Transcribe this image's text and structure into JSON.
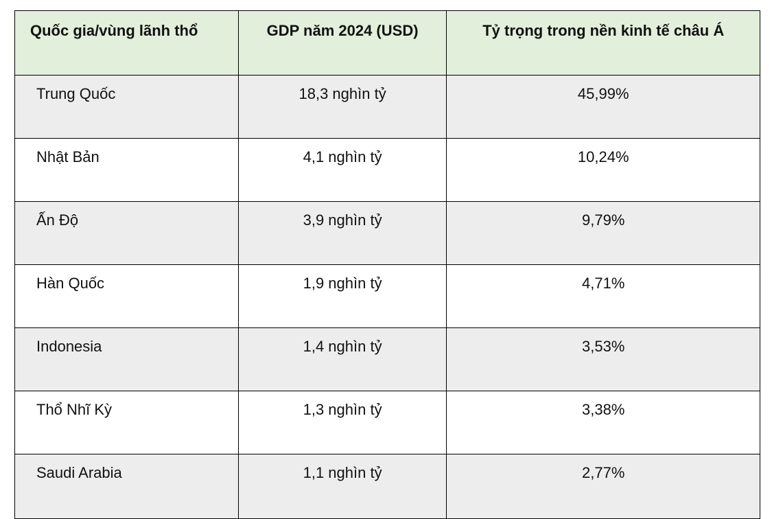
{
  "table": {
    "headers": [
      "Quốc gia/vùng lãnh thổ",
      "GDP năm 2024 (USD)",
      "Tỷ trọng trong nền kinh tế châu Á"
    ],
    "rows": [
      [
        "Trung Quốc",
        "18,3 nghìn tỷ",
        "45,99%"
      ],
      [
        "Nhật Bản",
        "4,1 nghìn tỷ",
        "10,24%"
      ],
      [
        "Ấn Độ",
        "3,9 nghìn tỷ",
        "9,79%"
      ],
      [
        "Hàn Quốc",
        "1,9 nghìn tỷ",
        "4,71%"
      ],
      [
        "Indonesia",
        "1,4 nghìn tỷ",
        "3,53%"
      ],
      [
        "Thổ Nhĩ Kỳ",
        "1,3 nghìn tỷ",
        "3,38%"
      ],
      [
        "Saudi Arabia",
        "1,1 nghìn tỷ",
        "2,77%"
      ]
    ],
    "colors": {
      "header_bg": "#e2efda",
      "stripe_bg": "#ededed",
      "border": "#000000"
    }
  }
}
